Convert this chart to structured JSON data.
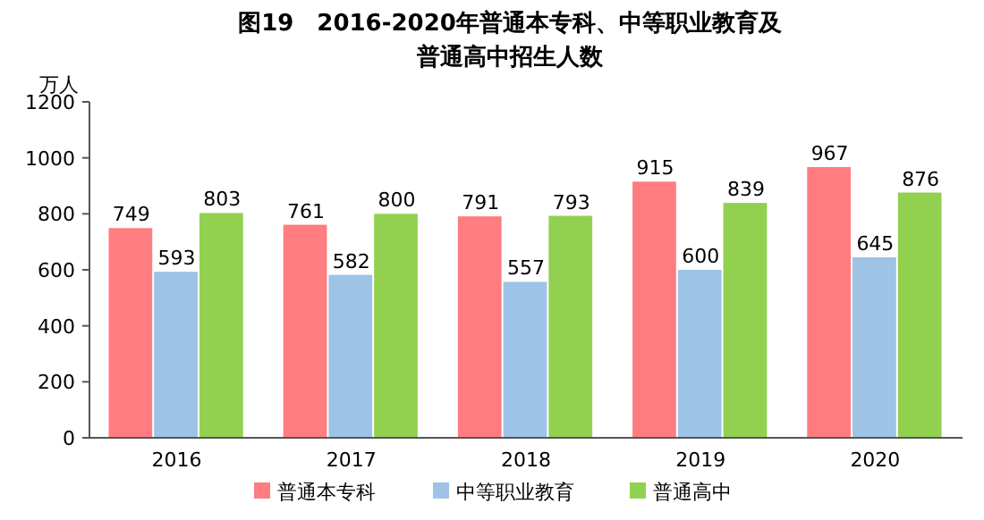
{
  "chart_data": {
    "type": "bar",
    "title": "图19　2016-2020年普通本专科、中等职业教育及普通高中招生人数",
    "ylabel": "万人",
    "categories": [
      "2016",
      "2017",
      "2018",
      "2019",
      "2020"
    ],
    "series": [
      {
        "name": "普通本专科",
        "color": "#ff7c80",
        "values": [
          749,
          761,
          791,
          915,
          967
        ]
      },
      {
        "name": "中等职业教育",
        "color": "#9dc3e6",
        "values": [
          593,
          582,
          557,
          600,
          645
        ]
      },
      {
        "name": "普通高中",
        "color": "#92d050",
        "values": [
          803,
          800,
          793,
          839,
          876
        ]
      }
    ],
    "ylim": [
      0,
      1200
    ],
    "yticks": [
      0,
      200,
      400,
      600,
      800,
      1000,
      1200
    ],
    "grid": false,
    "legend": "bottom",
    "data_labels": true
  }
}
